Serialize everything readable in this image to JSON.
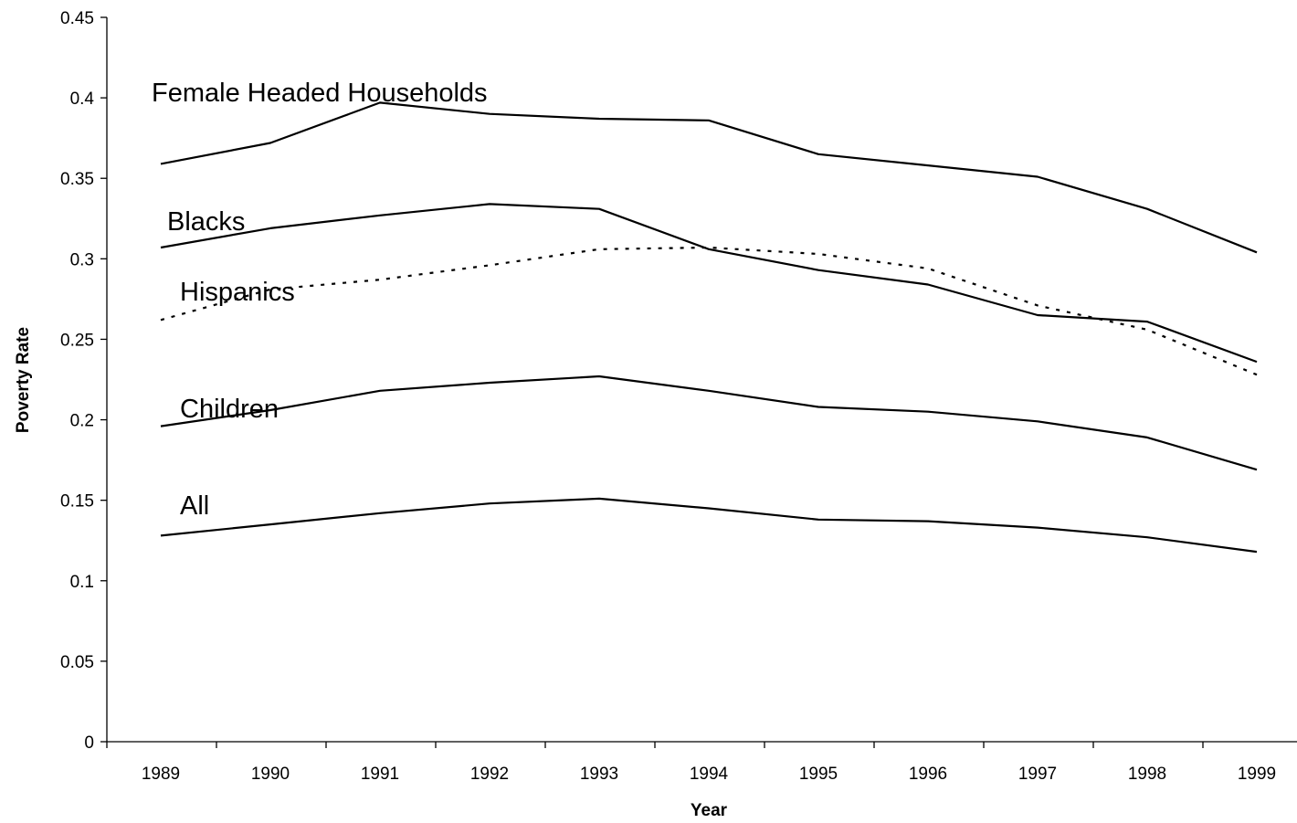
{
  "chart_data": {
    "type": "line",
    "title": "",
    "xlabel": "Year",
    "ylabel": "Poverty Rate",
    "ylim": [
      0,
      0.45
    ],
    "y_ticks": [
      "0",
      "0.05",
      "0.1",
      "0.15",
      "0.2",
      "0.25",
      "0.3",
      "0.35",
      "0.4",
      "0.45"
    ],
    "categories": [
      "1989",
      "1990",
      "1991",
      "1992",
      "1993",
      "1994",
      "1995",
      "1996",
      "1997",
      "1998",
      "1999"
    ],
    "grid": false,
    "legend": "none",
    "series": [
      {
        "name": "Female Headed Households",
        "style": "solid",
        "color": "#000000",
        "values": [
          0.359,
          0.372,
          0.397,
          0.39,
          0.387,
          0.386,
          0.365,
          0.358,
          0.351,
          0.331,
          0.304
        ]
      },
      {
        "name": "Blacks",
        "style": "solid",
        "color": "#000000",
        "values": [
          0.307,
          0.319,
          0.327,
          0.334,
          0.331,
          0.306,
          0.293,
          0.284,
          0.265,
          0.261,
          0.236
        ]
      },
      {
        "name": "Hispanics",
        "style": "dotted",
        "color": "#000000",
        "values": [
          0.262,
          0.281,
          0.287,
          0.296,
          0.306,
          0.307,
          0.303,
          0.294,
          0.271,
          0.256,
          0.228
        ]
      },
      {
        "name": "Children",
        "style": "solid",
        "color": "#000000",
        "values": [
          0.196,
          0.206,
          0.218,
          0.223,
          0.227,
          0.218,
          0.208,
          0.205,
          0.199,
          0.189,
          0.169
        ]
      },
      {
        "name": "All",
        "style": "solid",
        "color": "#000000",
        "values": [
          0.128,
          0.135,
          0.142,
          0.148,
          0.151,
          0.145,
          0.138,
          0.137,
          0.133,
          0.127,
          0.118
        ]
      }
    ]
  }
}
